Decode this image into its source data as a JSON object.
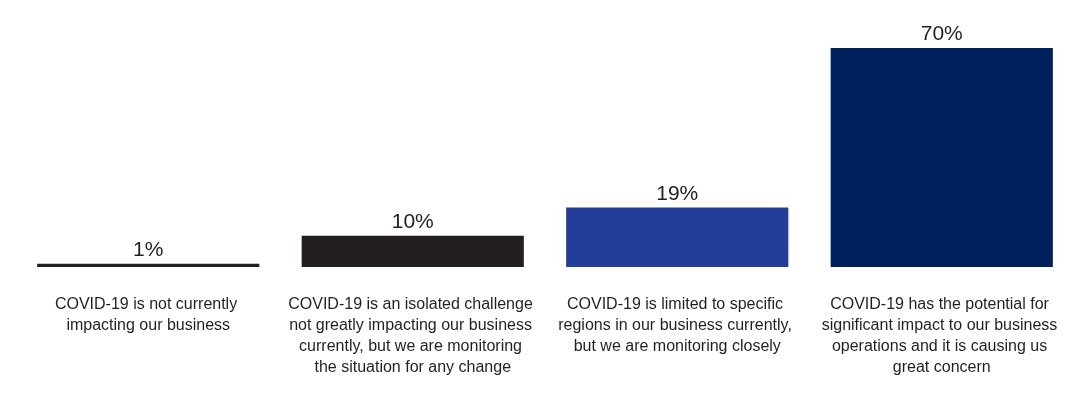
{
  "chart_data": {
    "type": "bar",
    "categories": [
      "COVID-19 is not currently impacting our business",
      "COVID-19 is an isolated challenge not greatly impacting our business currently, but we are monitoring the situation for any change",
      "COVID-19 is limited to specific regions in our business currently, but we are monitoring closely",
      "COVID-19 has the potential for significant impact to our business operations and it is causing us great concern"
    ],
    "values": [
      1,
      10,
      19,
      70
    ],
    "colors": [
      "#231f20",
      "#231f20",
      "#233e99",
      "#00205b"
    ],
    "value_labels": [
      "1%",
      "10%",
      "19%",
      "70%"
    ],
    "tick_labels": "x"
  }
}
